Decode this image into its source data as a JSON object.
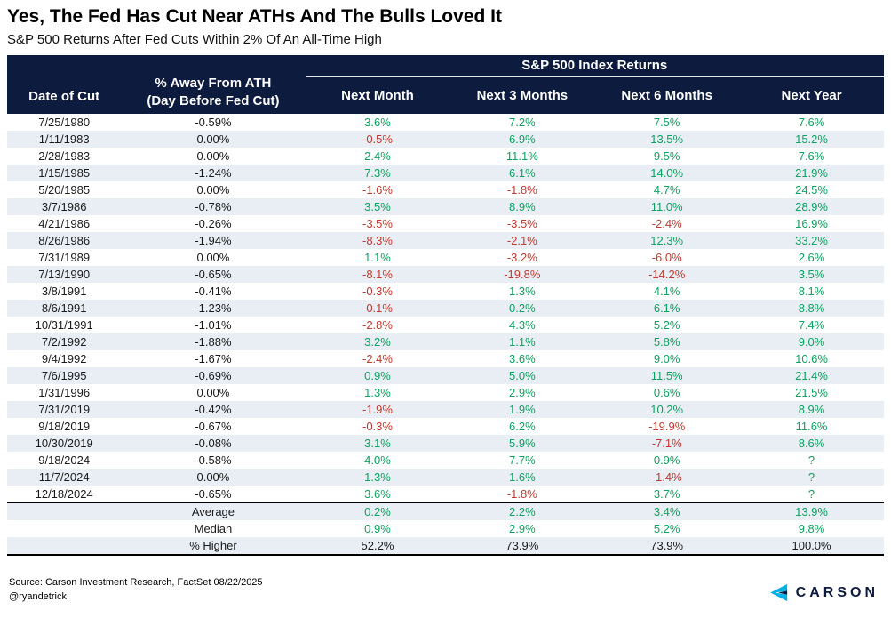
{
  "chart_data": {
    "type": "table",
    "title": "Yes, The Fed Has Cut Near ATHs And The Bulls Loved It",
    "subtitle": "S&P 500 Returns After Fed Cuts Within 2% Of An All-Time High",
    "group_header": "S&P 500 Index Returns",
    "columns": [
      "Date of Cut",
      "% Away From ATH (Day Before Fed Cut)",
      "Next Month",
      "Next 3 Months",
      "Next 6 Months",
      "Next Year"
    ],
    "ath_header_lines": [
      "% Away From ATH",
      "(Day Before Fed Cut)"
    ],
    "rows": [
      {
        "date": "7/25/1980",
        "pct_away_from_ath": "-0.59%",
        "returns": [
          "3.6%",
          "7.2%",
          "7.5%",
          "7.6%"
        ]
      },
      {
        "date": "1/11/1983",
        "pct_away_from_ath": "0.00%",
        "returns": [
          "-0.5%",
          "6.9%",
          "13.5%",
          "15.2%"
        ]
      },
      {
        "date": "2/28/1983",
        "pct_away_from_ath": "0.00%",
        "returns": [
          "2.4%",
          "11.1%",
          "9.5%",
          "7.6%"
        ]
      },
      {
        "date": "1/15/1985",
        "pct_away_from_ath": "-1.24%",
        "returns": [
          "7.3%",
          "6.1%",
          "14.0%",
          "21.9%"
        ]
      },
      {
        "date": "5/20/1985",
        "pct_away_from_ath": "0.00%",
        "returns": [
          "-1.6%",
          "-1.8%",
          "4.7%",
          "24.5%"
        ]
      },
      {
        "date": "3/7/1986",
        "pct_away_from_ath": "-0.78%",
        "returns": [
          "3.5%",
          "8.9%",
          "11.0%",
          "28.9%"
        ]
      },
      {
        "date": "4/21/1986",
        "pct_away_from_ath": "-0.26%",
        "returns": [
          "-3.5%",
          "-3.5%",
          "-2.4%",
          "16.9%"
        ]
      },
      {
        "date": "8/26/1986",
        "pct_away_from_ath": "-1.94%",
        "returns": [
          "-8.3%",
          "-2.1%",
          "12.3%",
          "33.2%"
        ]
      },
      {
        "date": "7/31/1989",
        "pct_away_from_ath": "0.00%",
        "returns": [
          "1.1%",
          "-3.2%",
          "-6.0%",
          "2.6%"
        ]
      },
      {
        "date": "7/13/1990",
        "pct_away_from_ath": "-0.65%",
        "returns": [
          "-8.1%",
          "-19.8%",
          "-14.2%",
          "3.5%"
        ]
      },
      {
        "date": "3/8/1991",
        "pct_away_from_ath": "-0.41%",
        "returns": [
          "-0.3%",
          "1.3%",
          "4.1%",
          "8.1%"
        ]
      },
      {
        "date": "8/6/1991",
        "pct_away_from_ath": "-1.23%",
        "returns": [
          "-0.1%",
          "0.2%",
          "6.1%",
          "8.8%"
        ]
      },
      {
        "date": "10/31/1991",
        "pct_away_from_ath": "-1.01%",
        "returns": [
          "-2.8%",
          "4.3%",
          "5.2%",
          "7.4%"
        ]
      },
      {
        "date": "7/2/1992",
        "pct_away_from_ath": "-1.88%",
        "returns": [
          "3.2%",
          "1.1%",
          "5.8%",
          "9.0%"
        ]
      },
      {
        "date": "9/4/1992",
        "pct_away_from_ath": "-1.67%",
        "returns": [
          "-2.4%",
          "3.6%",
          "9.0%",
          "10.6%"
        ]
      },
      {
        "date": "7/6/1995",
        "pct_away_from_ath": "-0.69%",
        "returns": [
          "0.9%",
          "5.0%",
          "11.5%",
          "21.4%"
        ]
      },
      {
        "date": "1/31/1996",
        "pct_away_from_ath": "0.00%",
        "returns": [
          "1.3%",
          "2.9%",
          "0.6%",
          "21.5%"
        ]
      },
      {
        "date": "7/31/2019",
        "pct_away_from_ath": "-0.42%",
        "returns": [
          "-1.9%",
          "1.9%",
          "10.2%",
          "8.9%"
        ]
      },
      {
        "date": "9/18/2019",
        "pct_away_from_ath": "-0.67%",
        "returns": [
          "-0.3%",
          "6.2%",
          "-19.9%",
          "11.6%"
        ]
      },
      {
        "date": "10/30/2019",
        "pct_away_from_ath": "-0.08%",
        "returns": [
          "3.1%",
          "5.9%",
          "-7.1%",
          "8.6%"
        ]
      },
      {
        "date": "9/18/2024",
        "pct_away_from_ath": "-0.58%",
        "returns": [
          "4.0%",
          "7.7%",
          "0.9%",
          "?"
        ]
      },
      {
        "date": "11/7/2024",
        "pct_away_from_ath": "0.00%",
        "returns": [
          "1.3%",
          "1.6%",
          "-1.4%",
          "?"
        ]
      },
      {
        "date": "12/18/2024",
        "pct_away_from_ath": "-0.65%",
        "returns": [
          "3.6%",
          "-1.8%",
          "3.7%",
          "?"
        ]
      }
    ],
    "summary_rows": [
      {
        "label": "Average",
        "values": [
          "0.2%",
          "2.2%",
          "3.4%",
          "13.9%"
        ],
        "colored": true
      },
      {
        "label": "Median",
        "values": [
          "0.9%",
          "2.9%",
          "5.2%",
          "9.8%"
        ],
        "colored": true
      },
      {
        "label": "% Higher",
        "values": [
          "52.2%",
          "73.9%",
          "73.9%",
          "100.0%"
        ],
        "colored": false
      }
    ]
  },
  "footer": {
    "source": "Source: Carson Investment Research, FactSet 08/22/2025",
    "handle": "@ryandetrick",
    "logo_text": "CARSON",
    "logo_icon": "carson-chevron-icon"
  },
  "colors": {
    "positive": "#0ea15f",
    "negative": "#c0392f",
    "header_bg": "#0d1b3e",
    "row_alt": "#e9eef5",
    "logo_cyan": "#00b0e6"
  }
}
